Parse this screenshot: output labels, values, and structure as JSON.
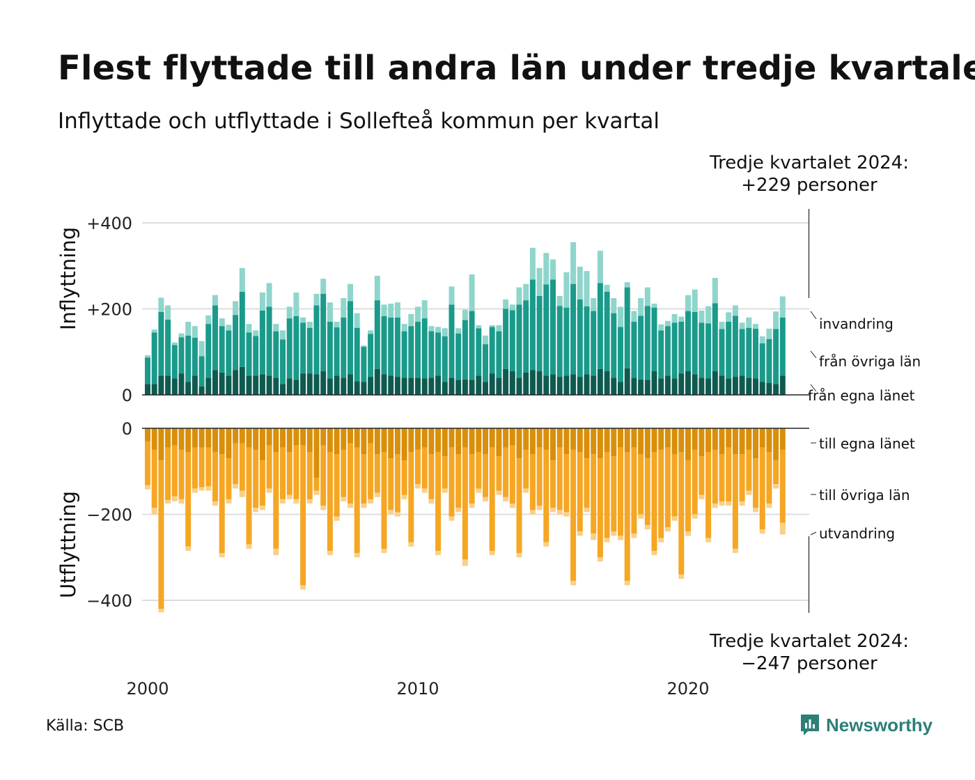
{
  "title": "Flest flyttade till andra län under tredje kvartalet",
  "subtitle": "Inflyttade och utflyttade i Sollefteå kommun per kvartal",
  "source": "Källa: SCB",
  "logo": {
    "name": "Newsworthy",
    "icon": "newsworthy-bar-chart-icon"
  },
  "chart_data": {
    "type": "bar",
    "stacked": true,
    "period": {
      "start": "2000 Q1",
      "end": "2024 Q3",
      "unit": "quarter"
    },
    "x_ticks": [
      "2000",
      "2010",
      "2020"
    ],
    "panels": [
      {
        "name": "Inflyttning",
        "ylabel": "Inflyttning",
        "yticks": [
          "+400",
          "+200",
          "0"
        ],
        "ylim": [
          0,
          400
        ],
        "series": [
          {
            "name": "från egna länet",
            "color": "#0f5a4f"
          },
          {
            "name": "från övriga län",
            "color": "#1a9a8a"
          },
          {
            "name": "invandring",
            "color": "#8fd5cb"
          }
        ],
        "totals": [
          92,
          152,
          226,
          208,
          122,
          143,
          170,
          160,
          125,
          185,
          232,
          178,
          163,
          218,
          295,
          165,
          150,
          238,
          260,
          165,
          150,
          205,
          238,
          180,
          170,
          235,
          270,
          215,
          170,
          225,
          258,
          190,
          115,
          150,
          277,
          210,
          212,
          215,
          165,
          188,
          205,
          220,
          160,
          158,
          155,
          252,
          155,
          198,
          280,
          162,
          138,
          162,
          162,
          222,
          210,
          250,
          258,
          342,
          295,
          330,
          315,
          230,
          285,
          355,
          298,
          288,
          225,
          335,
          256,
          225,
          205,
          262,
          195,
          225,
          250,
          212,
          164,
          172,
          188,
          182,
          232,
          245,
          196,
          206,
          272,
          170,
          192,
          208,
          168,
          180,
          165,
          136,
          154,
          194,
          229
        ],
        "own_county": [
          25,
          25,
          45,
          45,
          38,
          50,
          30,
          45,
          20,
          40,
          58,
          52,
          45,
          58,
          65,
          45,
          45,
          48,
          45,
          40,
          25,
          38,
          35,
          50,
          50,
          48,
          55,
          38,
          45,
          40,
          48,
          32,
          30,
          42,
          60,
          48,
          45,
          42,
          40,
          40,
          40,
          38,
          40,
          45,
          30,
          40,
          35,
          36,
          35,
          45,
          30,
          50,
          40,
          60,
          55,
          40,
          52,
          58,
          55,
          45,
          48,
          42,
          45,
          48,
          42,
          48,
          45,
          60,
          55,
          40,
          30,
          62,
          40,
          36,
          35,
          55,
          38,
          45,
          38,
          50,
          55,
          48,
          40,
          38,
          55,
          45,
          38,
          42,
          45,
          40,
          38,
          30,
          28,
          25,
          45
        ],
        "other_counties": [
          62,
          120,
          148,
          130,
          78,
          84,
          108,
          88,
          70,
          125,
          150,
          108,
          105,
          128,
          175,
          100,
          92,
          148,
          160,
          108,
          104,
          140,
          148,
          118,
          106,
          160,
          180,
          132,
          112,
          140,
          170,
          124,
          82,
          100,
          160,
          135,
          135,
          138,
          108,
          120,
          130,
          140,
          108,
          100,
          106,
          170,
          108,
          138,
          160,
          110,
          88,
          108,
          108,
          140,
          142,
          170,
          168,
          210,
          175,
          212,
          220,
          165,
          158,
          210,
          180,
          158,
          150,
          200,
          185,
          150,
          128,
          188,
          130,
          148,
          172,
          148,
          112,
          115,
          130,
          120,
          140,
          145,
          128,
          128,
          158,
          108,
          132,
          142,
          108,
          116,
          116,
          90,
          102,
          128,
          135
        ]
      },
      {
        "name": "Utflyttning",
        "ylabel": "Utflyttning",
        "yticks": [
          "0",
          "−200",
          "−400"
        ],
        "ylim": [
          -430,
          0
        ],
        "series": [
          {
            "name": "till egna länet",
            "color": "#d98f0a"
          },
          {
            "name": "till övriga län",
            "color": "#f5a623"
          },
          {
            "name": "utvandring",
            "color": "#f9d08a"
          }
        ],
        "totals": [
          -142,
          -200,
          -428,
          -175,
          -170,
          -175,
          -285,
          -150,
          -145,
          -145,
          -180,
          -300,
          -175,
          -140,
          -160,
          -280,
          -195,
          -190,
          -150,
          -295,
          -175,
          -165,
          -175,
          -375,
          -175,
          -155,
          -190,
          -295,
          -215,
          -170,
          -185,
          -300,
          -185,
          -175,
          -160,
          -290,
          -200,
          -205,
          -165,
          -275,
          -140,
          -150,
          -175,
          -295,
          -150,
          -215,
          -195,
          -320,
          -185,
          -150,
          -170,
          -295,
          -155,
          -170,
          -185,
          -300,
          -150,
          -200,
          -190,
          -275,
          -195,
          -200,
          -205,
          -365,
          -250,
          -195,
          -260,
          -310,
          -265,
          -250,
          -260,
          -365,
          -255,
          -210,
          -235,
          -295,
          -265,
          -240,
          -215,
          -350,
          -250,
          -210,
          -165,
          -265,
          -185,
          -180,
          -180,
          -290,
          -180,
          -155,
          -195,
          -245,
          -185,
          -140,
          -247
        ],
        "own_county": [
          -30,
          -50,
          -75,
          -45,
          -40,
          -50,
          -55,
          -45,
          -45,
          -45,
          -55,
          -60,
          -70,
          -35,
          -35,
          -45,
          -50,
          -75,
          -40,
          -55,
          -45,
          -55,
          -40,
          -40,
          -55,
          -115,
          -40,
          -55,
          -60,
          -50,
          -35,
          -45,
          -60,
          -35,
          -60,
          -55,
          -70,
          -60,
          -75,
          -55,
          -50,
          -45,
          -60,
          -55,
          -65,
          -45,
          -60,
          -45,
          -60,
          -55,
          -60,
          -45,
          -65,
          -45,
          -40,
          -70,
          -50,
          -60,
          -45,
          -50,
          -75,
          -45,
          -60,
          -50,
          -55,
          -70,
          -60,
          -70,
          -55,
          -65,
          -45,
          -55,
          -45,
          -60,
          -70,
          -55,
          -50,
          -45,
          -60,
          -55,
          -75,
          -50,
          -65,
          -55,
          -50,
          -60,
          -45,
          -60,
          -60,
          -50,
          -70,
          -45,
          -55,
          -75,
          -50
        ],
        "other_counties": [
          -102,
          -135,
          -345,
          -122,
          -118,
          -115,
          -220,
          -95,
          -92,
          -90,
          -115,
          -230,
          -95,
          -95,
          -110,
          -225,
          -135,
          -105,
          -100,
          -225,
          -120,
          -100,
          -125,
          -325,
          -110,
          -30,
          -140,
          -230,
          -145,
          -110,
          -140,
          -245,
          -115,
          -130,
          -90,
          -225,
          -120,
          -135,
          -80,
          -210,
          -80,
          -95,
          -105,
          -230,
          -75,
          -160,
          -125,
          -260,
          -115,
          -85,
          -100,
          -240,
          -80,
          -115,
          -135,
          -220,
          -90,
          -130,
          -135,
          -215,
          -110,
          -145,
          -135,
          -305,
          -185,
          -115,
          -185,
          -230,
          -200,
          -175,
          -205,
          -300,
          -200,
          -140,
          -155,
          -230,
          -205,
          -185,
          -145,
          -285,
          -165,
          -150,
          -90,
          -200,
          -125,
          -110,
          -125,
          -220,
          -110,
          -95,
          -115,
          -190,
          -120,
          -55,
          -170
        ]
      }
    ],
    "annotations": [
      {
        "panel": "Inflyttning",
        "text_lines": [
          "Tredje kvartalet 2024:",
          "+229 personer"
        ]
      },
      {
        "panel": "Utflyttning",
        "text_lines": [
          "Tredje kvartalet 2024:",
          "−247 personer"
        ]
      }
    ]
  }
}
